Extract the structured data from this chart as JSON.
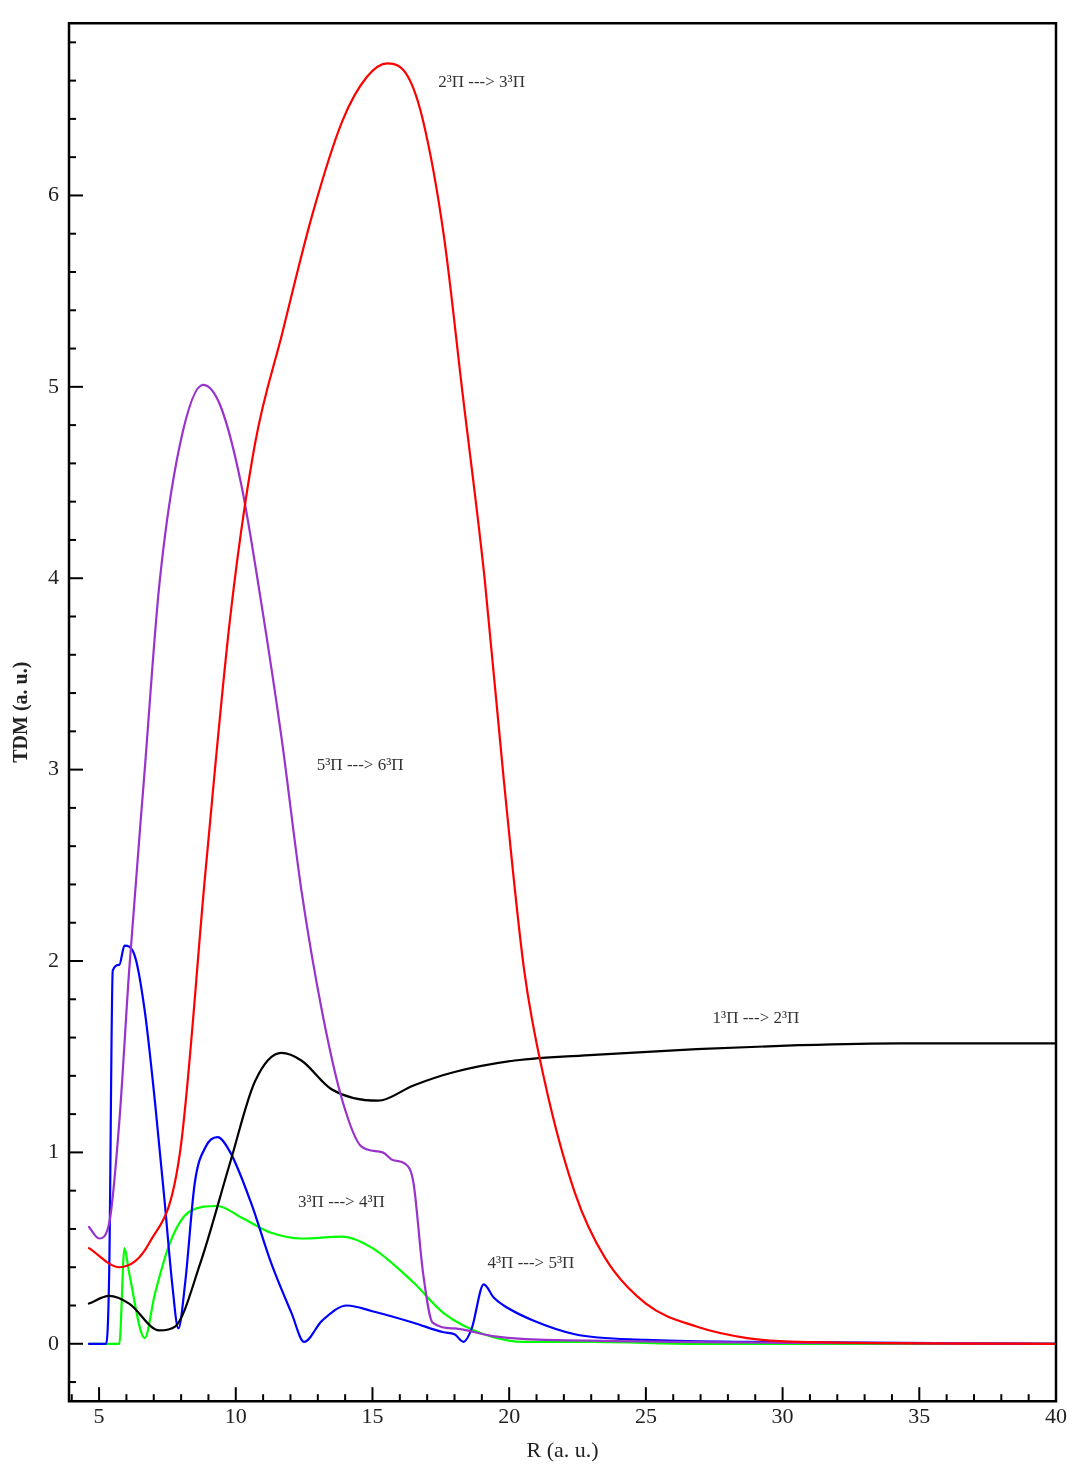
{
  "chart_data": {
    "type": "line",
    "xlabel": "R (a. u.)",
    "ylabel": "TDM (a. u.)",
    "xlim": [
      3.9,
      40
    ],
    "ylim": [
      -0.3,
      6.9
    ],
    "xticks": [
      {
        "value": 4,
        "label": null
      },
      5,
      {
        "value": 6,
        "label": null
      },
      {
        "value": 7,
        "label": null
      },
      {
        "value": 8,
        "label": null
      },
      {
        "value": 9,
        "label": null
      },
      10,
      {
        "value": 11,
        "label": null
      },
      {
        "value": 12,
        "label": null
      },
      {
        "value": 13,
        "label": null
      },
      {
        "value": 14,
        "label": null
      },
      15,
      {
        "value": 16,
        "label": null
      },
      {
        "value": 17,
        "label": null
      },
      {
        "value": 18,
        "label": null
      },
      {
        "value": 19,
        "label": null
      },
      20,
      {
        "value": 21,
        "label": null
      },
      {
        "value": 22,
        "label": null
      },
      {
        "value": 23,
        "label": null
      },
      {
        "value": 24,
        "label": null
      },
      25,
      {
        "value": 26,
        "label": null
      },
      {
        "value": 27,
        "label": null
      },
      {
        "value": 28,
        "label": null
      },
      {
        "value": 29,
        "label": null
      },
      30,
      {
        "value": 31,
        "label": null
      },
      {
        "value": 32,
        "label": null
      },
      {
        "value": 33,
        "label": null
      },
      {
        "value": 34,
        "label": null
      },
      35,
      {
        "value": 36,
        "label": null
      },
      {
        "value": 37,
        "label": null
      },
      {
        "value": 38,
        "label": null
      },
      {
        "value": 39,
        "label": null
      },
      40
    ],
    "yticks": [
      {
        "value": -0.2,
        "label": null
      },
      0,
      {
        "value": 0.2,
        "label": null
      },
      {
        "value": 0.4,
        "label": null
      },
      {
        "value": 0.6,
        "label": null
      },
      {
        "value": 0.8,
        "label": null
      },
      1,
      {
        "value": 1.2,
        "label": null
      },
      {
        "value": 1.4,
        "label": null
      },
      {
        "value": 1.6,
        "label": null
      },
      {
        "value": 1.8,
        "label": null
      },
      2,
      {
        "value": 2.2,
        "label": null
      },
      {
        "value": 2.4,
        "label": null
      },
      {
        "value": 2.6,
        "label": null
      },
      {
        "value": 2.8,
        "label": null
      },
      3,
      {
        "value": 3.2,
        "label": null
      },
      {
        "value": 3.4,
        "label": null
      },
      {
        "value": 3.6,
        "label": null
      },
      {
        "value": 3.8,
        "label": null
      },
      4,
      {
        "value": 4.2,
        "label": null
      },
      {
        "value": 4.4,
        "label": null
      },
      {
        "value": 4.6,
        "label": null
      },
      {
        "value": 4.8,
        "label": null
      },
      5,
      {
        "value": 5.2,
        "label": null
      },
      {
        "value": 5.4,
        "label": null
      },
      {
        "value": 5.6,
        "label": null
      },
      {
        "value": 5.8,
        "label": null
      },
      6,
      {
        "value": 6.2,
        "label": null
      },
      {
        "value": 6.4,
        "label": null
      },
      {
        "value": 6.6,
        "label": null
      },
      {
        "value": 6.8,
        "label": null
      }
    ],
    "marker": "none",
    "line_style": "solid",
    "series": [
      {
        "name": "2³Π ---> 3³Π",
        "color": "#ff0000",
        "x": [
          4.63,
          5.74,
          6.85,
          7.96,
          8.9,
          9.8,
          10.7,
          11.7,
          12.8,
          13.9,
          14.8,
          15.55,
          16.3,
          16.85,
          17.6,
          18.3,
          19.1,
          19.8,
          20.55,
          21.3,
          22.4,
          23.5,
          25,
          26.85,
          28.7,
          30.6,
          40
        ],
        "values": [
          0.5,
          0.4,
          0.53,
          1.0,
          2.48,
          3.8,
          4.7,
          5.28,
          5.9,
          6.39,
          6.62,
          6.69,
          6.62,
          6.39,
          5.8,
          4.96,
          4.0,
          2.95,
          1.95,
          1.37,
          0.79,
          0.45,
          0.21,
          0.09,
          0.03,
          0.01,
          0.0
        ]
      },
      {
        "name": "5³Π ---> 6³Π",
        "color": "#9933cc",
        "x": [
          4.63,
          5.0,
          5.37,
          5.74,
          6.1,
          6.67,
          7.2,
          7.96,
          8.8,
          9.44,
          10.2,
          10.9,
          11.67,
          12.4,
          13.15,
          13.9,
          14.6,
          15.37,
          15.74,
          16.2,
          16.5,
          16.85,
          17.2,
          18,
          19.4,
          21.3,
          40
        ],
        "values": [
          0.61,
          0.55,
          0.63,
          1.16,
          1.95,
          3.0,
          3.96,
          4.7,
          5.01,
          4.9,
          4.49,
          3.9,
          3.17,
          2.37,
          1.74,
          1.27,
          1.03,
          1.0,
          0.96,
          0.94,
          0.84,
          0.37,
          0.11,
          0.08,
          0.04,
          0.02,
          0.0
        ]
      },
      {
        "name": "1³Π ---> 2³Π",
        "color": "#000000",
        "x": [
          4.63,
          5.37,
          6.1,
          7.2,
          7.78,
          8.7,
          9.8,
          10.7,
          11.67,
          12.4,
          13.5,
          15.2,
          16.5,
          18,
          20.2,
          23.1,
          26.85,
          30.6,
          34.3,
          40
        ],
        "values": [
          0.21,
          0.25,
          0.21,
          0.07,
          0.09,
          0.42,
          0.95,
          1.37,
          1.52,
          1.48,
          1.33,
          1.27,
          1.35,
          1.42,
          1.48,
          1.51,
          1.54,
          1.56,
          1.57,
          1.57
        ]
      },
      {
        "name": "4³Π ---> 5³Π",
        "color": "#0000ff",
        "x": [
          4.63,
          5.26,
          5.37,
          5.5,
          5.74,
          5.93,
          6.3,
          6.67,
          7.04,
          7.4,
          7.67,
          7.9,
          8.15,
          8.5,
          8.9,
          9.33,
          9.8,
          10.55,
          11.3,
          12.04,
          12.5,
          13.15,
          14.07,
          15,
          16.5,
          17.6,
          18,
          18.33,
          18.63,
          19.07,
          19.44,
          19.8,
          20.9,
          22.4,
          25,
          28.7,
          40
        ],
        "values": [
          0,
          0,
          0.37,
          1.95,
          1.98,
          2.08,
          2.03,
          1.74,
          1.27,
          0.74,
          0.32,
          0.08,
          0.32,
          0.84,
          1.03,
          1.08,
          1.0,
          0.74,
          0.42,
          0.16,
          0.01,
          0.12,
          0.2,
          0.17,
          0.11,
          0.06,
          0.05,
          0.01,
          0.08,
          0.31,
          0.24,
          0.2,
          0.12,
          0.05,
          0.02,
          0.01,
          0.0
        ]
      },
      {
        "name": "3³Π ---> 4³Π",
        "color": "#00ff00",
        "x": [
          4.63,
          5.74,
          5.93,
          6.1,
          6.67,
          7.04,
          7.6,
          8.3,
          9.33,
          10.2,
          11.3,
          12.4,
          13.9,
          15,
          16.5,
          17.6,
          19.07,
          20.55,
          23.1,
          26.85,
          40
        ],
        "values": [
          0,
          0,
          0.5,
          0.37,
          0.03,
          0.26,
          0.53,
          0.69,
          0.72,
          0.66,
          0.58,
          0.55,
          0.56,
          0.5,
          0.32,
          0.16,
          0.05,
          0.01,
          0.01,
          0.0,
          0.0
        ]
      }
    ]
  }
}
